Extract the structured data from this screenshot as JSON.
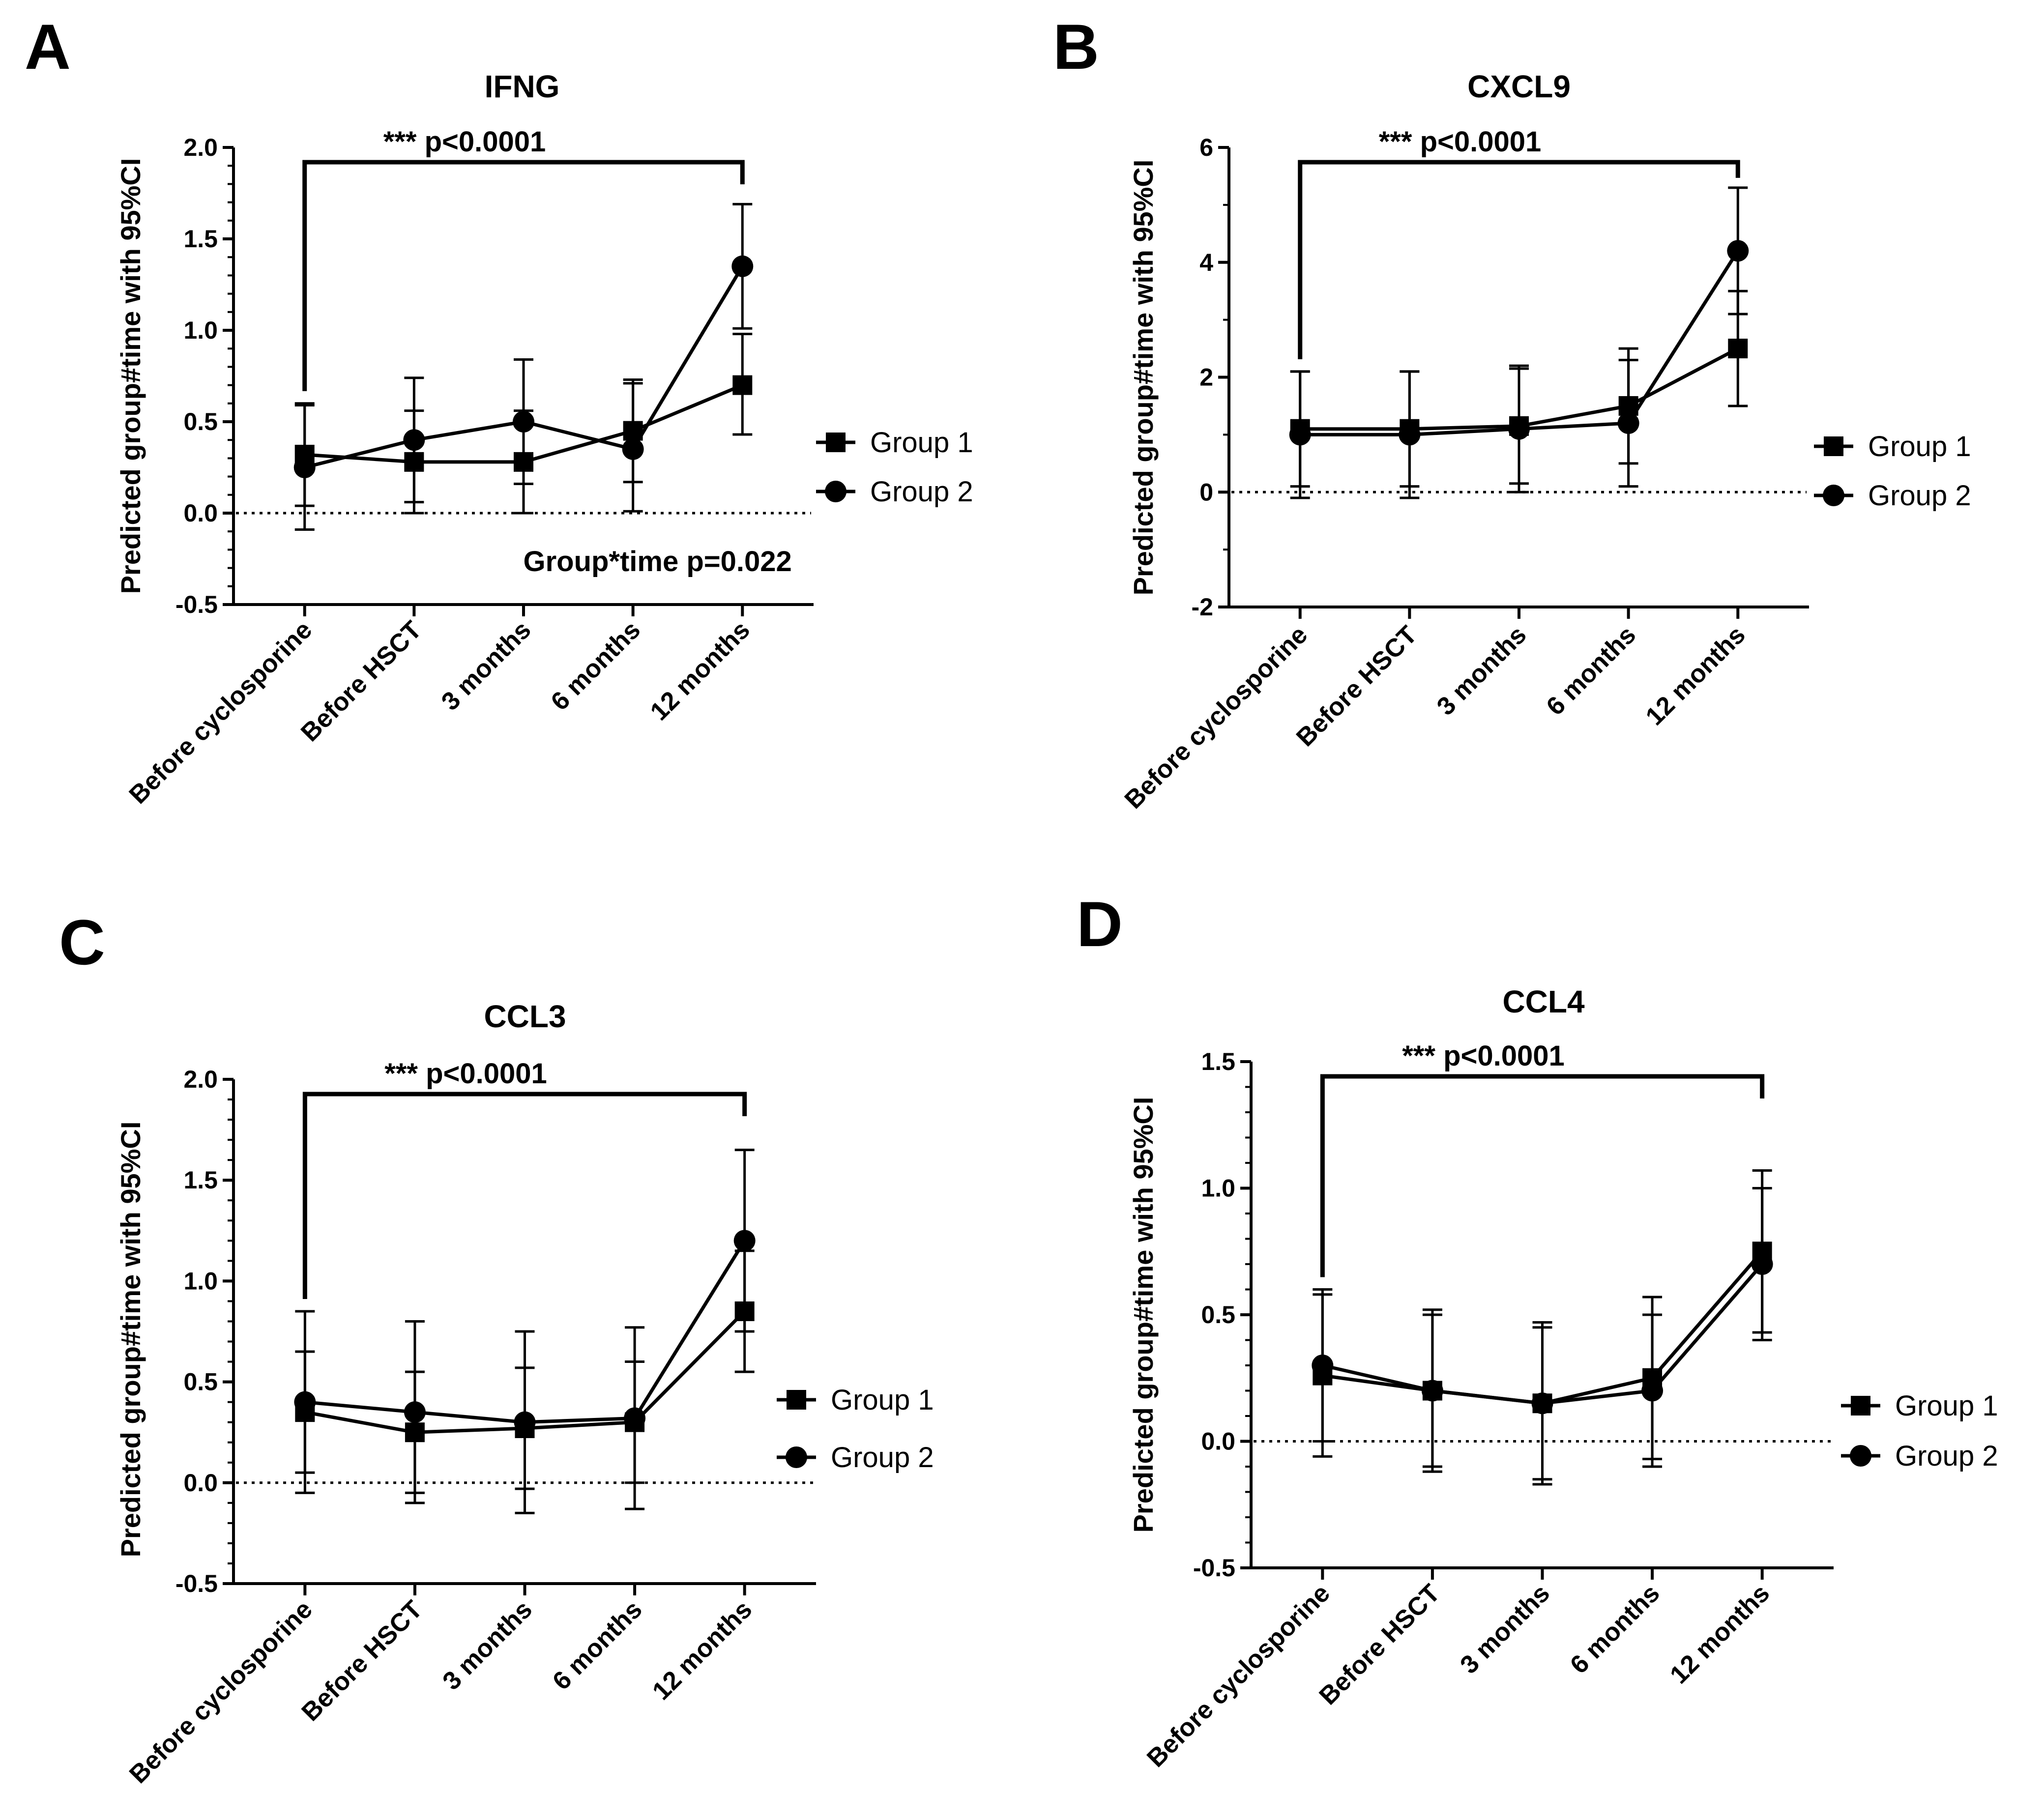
{
  "figure": {
    "y_axis_label": "Predicted group#time with 95%CI",
    "x_categories": [
      "Before cyclosporine",
      "Before HSCT",
      "3 months",
      "6 months",
      "12 months"
    ],
    "legend": [
      "Group 1",
      "Group 2"
    ],
    "series_color": "#000000"
  },
  "chart_data": [
    {
      "panel": "A",
      "type": "line",
      "title": "IFNG",
      "xlabel": "",
      "ylabel": "Predicted group#time with 95%CI",
      "ylim": [
        -0.5,
        2.0
      ],
      "yticks": [
        -0.5,
        0.0,
        0.5,
        1.0,
        1.5,
        2.0
      ],
      "ytick_labels": [
        "-0.5",
        "0.0",
        "0.5",
        "1.0",
        "1.5",
        "2.0"
      ],
      "minor_ticks": 4,
      "categories": [
        "Before cyclosporine",
        "Before HSCT",
        "3 months",
        "6 months",
        "12 months"
      ],
      "series": [
        {
          "name": "Group 1",
          "marker": "square",
          "values": [
            0.32,
            0.28,
            0.28,
            0.45,
            0.7
          ],
          "lower": [
            0.04,
            0.0,
            0.0,
            0.17,
            0.43
          ],
          "upper": [
            0.6,
            0.56,
            0.56,
            0.73,
            0.98
          ]
        },
        {
          "name": "Group 2",
          "marker": "circle",
          "values": [
            0.25,
            0.4,
            0.5,
            0.35,
            1.35
          ],
          "lower": [
            -0.09,
            0.06,
            0.16,
            0.01,
            1.01
          ],
          "upper": [
            0.59,
            0.74,
            0.84,
            0.71,
            1.69
          ]
        }
      ],
      "significance": {
        "label": "*** p<0.0001",
        "from": "Before cyclosporine",
        "to": "12 months"
      },
      "annotation": "Group*time p=0.022"
    },
    {
      "panel": "B",
      "type": "line",
      "title": "CXCL9",
      "xlabel": "",
      "ylabel": "Predicted group#time with 95%CI",
      "ylim": [
        -2,
        6
      ],
      "yticks": [
        -2,
        0,
        2,
        4,
        6
      ],
      "ytick_labels": [
        "-2",
        "0",
        "2",
        "4",
        "6"
      ],
      "minor_ticks": 1,
      "categories": [
        "Before cyclosporine",
        "Before HSCT",
        "3 months",
        "6 months",
        "12 months"
      ],
      "series": [
        {
          "name": "Group 1",
          "marker": "square",
          "values": [
            1.1,
            1.1,
            1.15,
            1.5,
            2.5
          ],
          "lower": [
            0.1,
            0.1,
            0.15,
            0.5,
            1.5
          ],
          "upper": [
            2.1,
            2.1,
            2.15,
            2.5,
            3.5
          ]
        },
        {
          "name": "Group 2",
          "marker": "circle",
          "values": [
            1.0,
            1.0,
            1.1,
            1.2,
            4.2
          ],
          "lower": [
            -0.1,
            -0.1,
            0.0,
            0.1,
            3.1
          ],
          "upper": [
            2.1,
            2.1,
            2.2,
            2.3,
            5.3
          ]
        }
      ],
      "significance": {
        "label": "*** p<0.0001",
        "from": "Before cyclosporine",
        "to": "12 months"
      }
    },
    {
      "panel": "C",
      "type": "line",
      "title": "CCL3",
      "xlabel": "",
      "ylabel": "Predicted group#time with 95%CI",
      "ylim": [
        -0.5,
        2.0
      ],
      "yticks": [
        -0.5,
        0.0,
        0.5,
        1.0,
        1.5,
        2.0
      ],
      "ytick_labels": [
        "-0.5",
        "0.0",
        "0.5",
        "1.0",
        "1.5",
        "2.0"
      ],
      "minor_ticks": 4,
      "categories": [
        "Before cyclosporine",
        "Before HSCT",
        "3 months",
        "6 months",
        "12 months"
      ],
      "series": [
        {
          "name": "Group 1",
          "marker": "square",
          "values": [
            0.35,
            0.25,
            0.27,
            0.3,
            0.85
          ],
          "lower": [
            0.05,
            -0.05,
            -0.03,
            0.0,
            0.55
          ],
          "upper": [
            0.65,
            0.55,
            0.57,
            0.6,
            1.15
          ]
        },
        {
          "name": "Group 2",
          "marker": "circle",
          "values": [
            0.4,
            0.35,
            0.3,
            0.32,
            1.2
          ],
          "lower": [
            -0.05,
            -0.1,
            -0.15,
            -0.13,
            0.75
          ],
          "upper": [
            0.85,
            0.8,
            0.75,
            0.77,
            1.65
          ]
        }
      ],
      "significance": {
        "label": "*** p<0.0001",
        "from": "Before cyclosporine",
        "to": "12 months"
      }
    },
    {
      "panel": "D",
      "type": "line",
      "title": "CCL4",
      "xlabel": "",
      "ylabel": "Predicted group#time with 95%CI",
      "ylim": [
        -0.5,
        1.5
      ],
      "yticks": [
        -0.5,
        0.0,
        0.5,
        1.0,
        1.5
      ],
      "ytick_labels": [
        "-0.5",
        "0.0",
        "0.5",
        "1.0",
        "1.5"
      ],
      "minor_ticks": 4,
      "categories": [
        "Before cyclosporine",
        "Before HSCT",
        "3 months",
        "6 months",
        "12 months"
      ],
      "series": [
        {
          "name": "Group 1",
          "marker": "square",
          "values": [
            0.26,
            0.2,
            0.15,
            0.25,
            0.75
          ],
          "lower": [
            -0.06,
            -0.12,
            -0.17,
            -0.07,
            0.43
          ],
          "upper": [
            0.58,
            0.52,
            0.47,
            0.57,
            1.07
          ]
        },
        {
          "name": "Group 2",
          "marker": "circle",
          "values": [
            0.3,
            0.2,
            0.15,
            0.2,
            0.7
          ],
          "lower": [
            0.0,
            -0.1,
            -0.15,
            -0.1,
            0.4
          ],
          "upper": [
            0.6,
            0.5,
            0.45,
            0.5,
            1.0
          ]
        }
      ],
      "significance": {
        "label": "*** p<0.0001",
        "from": "Before cyclosporine",
        "to": "12 months"
      }
    }
  ]
}
